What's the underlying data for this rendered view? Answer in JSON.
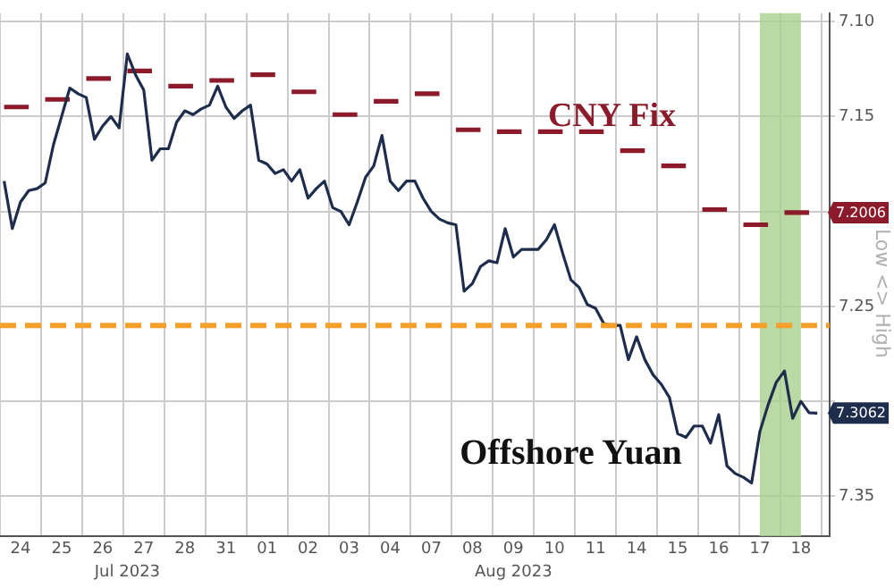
{
  "chart_data": {
    "type": "line",
    "categories": [
      null,
      null,
      "24",
      null,
      null,
      null,
      null,
      "25",
      null,
      null,
      null,
      null,
      "26",
      null,
      null,
      null,
      null,
      "27",
      null,
      null,
      null,
      null,
      "28",
      null,
      null,
      null,
      null,
      "31",
      null,
      null,
      null,
      null,
      "01",
      null,
      null,
      null,
      null,
      "02",
      null,
      null,
      null,
      null,
      "03",
      null,
      null,
      null,
      null,
      "04",
      null,
      null,
      null,
      null,
      "07",
      null,
      null,
      null,
      null,
      "08",
      null,
      null,
      null,
      null,
      "09",
      null,
      null,
      null,
      null,
      "10",
      null,
      null,
      null,
      null,
      "11",
      null,
      null,
      null,
      null,
      "14",
      null,
      null,
      null,
      null,
      "15",
      null,
      null,
      null,
      null,
      "16",
      null,
      null,
      null,
      null,
      "17",
      null,
      null,
      null,
      null,
      "18",
      null,
      null,
      null
    ],
    "ylim": [
      7.371,
      7.0956
    ],
    "yticks": [
      {
        "value": 7.1,
        "label": "7.10"
      },
      7.15,
      {
        "value": 7.2,
        "label": null
      },
      7.25,
      {
        "value": 7.3,
        "label": null
      },
      7.35
    ],
    "grid": true,
    "legend": false,
    "marker": "none",
    "annotations": [
      "Jul 2023",
      "Aug 2023",
      "Low <> High"
    ],
    "ref_lines": [
      {
        "axis": "y",
        "value": 7.26,
        "color": "#f5a02a",
        "line_style": "dashed"
      }
    ],
    "bands": [
      {
        "axis": "x",
        "from": "17",
        "to": "18",
        "color": "#a9d18e"
      }
    ],
    "series": [
      {
        "name": "Offshore Yuan",
        "type": "line",
        "color": "#1f2d4d",
        "line_style": "solid",
        "values": [
          7.184,
          7.209,
          7.195,
          7.189,
          7.188,
          7.185,
          7.165,
          7.15,
          7.135,
          7.138,
          7.14,
          7.162,
          7.155,
          7.15,
          7.156,
          7.117,
          7.128,
          7.136,
          7.173,
          7.167,
          7.167,
          7.153,
          7.147,
          7.149,
          7.146,
          7.144,
          7.134,
          7.145,
          7.151,
          7.147,
          7.144,
          7.173,
          7.175,
          7.18,
          7.178,
          7.184,
          7.178,
          7.193,
          7.188,
          7.184,
          7.198,
          7.2,
          7.207,
          7.195,
          7.182,
          7.176,
          7.16,
          7.184,
          7.189,
          7.184,
          7.184,
          7.193,
          7.2,
          7.204,
          7.206,
          7.207,
          7.242,
          7.238,
          7.229,
          7.226,
          7.227,
          7.209,
          7.224,
          7.22,
          7.22,
          7.22,
          7.215,
          7.207,
          7.222,
          7.236,
          7.24,
          7.249,
          7.251,
          7.259,
          7.26,
          7.26,
          7.278,
          7.266,
          7.278,
          7.286,
          7.291,
          7.298,
          7.317,
          7.319,
          7.313,
          7.313,
          7.322,
          7.307,
          7.334,
          7.338,
          7.34,
          7.343,
          7.316,
          7.302,
          7.29,
          7.284,
          7.309,
          7.3,
          7.306,
          7.3062,
          null
        ],
        "value_labels": [
          null,
          null,
          null,
          null,
          null,
          null,
          null,
          null,
          null,
          null,
          null,
          null,
          null,
          null,
          null,
          null,
          null,
          null,
          null,
          null,
          null,
          null,
          null,
          null,
          null,
          null,
          null,
          null,
          null,
          null,
          null,
          null,
          null,
          null,
          null,
          null,
          null,
          null,
          null,
          null,
          null,
          null,
          null,
          null,
          null,
          null,
          null,
          null,
          null,
          null,
          null,
          null,
          null,
          null,
          null,
          null,
          null,
          null,
          null,
          null,
          null,
          null,
          null,
          null,
          null,
          null,
          null,
          null,
          null,
          null,
          null,
          null,
          null,
          null,
          null,
          null,
          null,
          null,
          null,
          null,
          null,
          null,
          null,
          null,
          null,
          null,
          null,
          null,
          null,
          null,
          null,
          null,
          null,
          null,
          null,
          null,
          null,
          null,
          null,
          "7.3062",
          null
        ]
      },
      {
        "name": "CNY Fix",
        "type": "line",
        "color": "#8b1a2b",
        "line_style": "solid",
        "values": [
          7.145,
          7.145,
          7.145,
          7.145,
          null,
          7.141,
          7.141,
          7.141,
          7.141,
          null,
          7.13,
          7.13,
          7.13,
          7.13,
          null,
          7.126,
          7.126,
          7.126,
          7.126,
          null,
          7.134,
          7.134,
          7.134,
          7.134,
          null,
          7.131,
          7.131,
          7.131,
          7.131,
          null,
          7.128,
          7.128,
          7.128,
          7.128,
          null,
          7.137,
          7.137,
          7.137,
          7.137,
          null,
          7.149,
          7.149,
          7.149,
          7.149,
          null,
          7.142,
          7.142,
          7.142,
          7.142,
          null,
          7.138,
          7.138,
          7.138,
          7.138,
          null,
          7.157,
          7.157,
          7.157,
          7.157,
          null,
          7.158,
          7.158,
          7.158,
          7.158,
          null,
          7.158,
          7.158,
          7.158,
          7.158,
          null,
          7.158,
          7.158,
          7.158,
          7.158,
          null,
          7.168,
          7.168,
          7.168,
          7.168,
          null,
          7.176,
          7.176,
          7.176,
          7.176,
          null,
          7.199,
          7.199,
          7.199,
          7.199,
          null,
          7.207,
          7.207,
          7.207,
          7.207,
          null,
          7.2006,
          7.2006,
          7.2006,
          7.2006,
          null,
          null
        ],
        "value_labels": [
          null,
          null,
          null,
          null,
          null,
          null,
          null,
          null,
          null,
          null,
          null,
          null,
          null,
          null,
          null,
          null,
          null,
          null,
          null,
          null,
          null,
          null,
          null,
          null,
          null,
          null,
          null,
          null,
          null,
          null,
          null,
          null,
          null,
          null,
          null,
          null,
          null,
          null,
          null,
          null,
          null,
          null,
          null,
          null,
          null,
          null,
          null,
          null,
          null,
          null,
          null,
          null,
          null,
          null,
          null,
          null,
          null,
          null,
          null,
          null,
          null,
          null,
          null,
          null,
          null,
          null,
          null,
          null,
          null,
          null,
          null,
          null,
          null,
          null,
          null,
          null,
          null,
          null,
          null,
          null,
          null,
          null,
          null,
          null,
          null,
          null,
          null,
          null,
          null,
          null,
          null,
          null,
          null,
          null,
          null,
          null,
          null,
          null,
          "7.2006",
          null,
          null
        ]
      }
    ]
  }
}
